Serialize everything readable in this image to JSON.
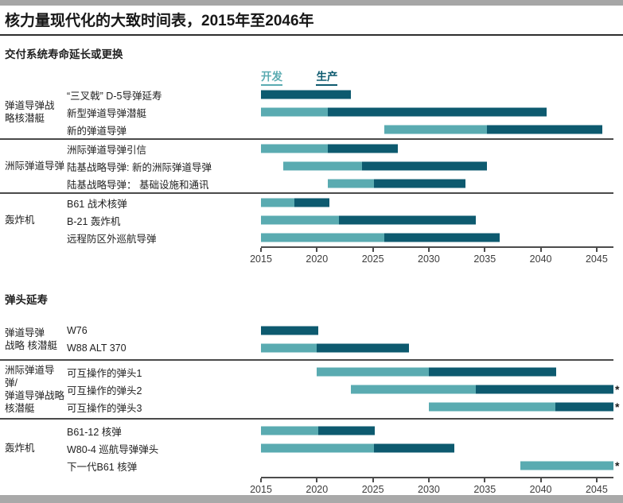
{
  "page": {
    "title": "核力量现代化的大致时间表，2015年至2046年"
  },
  "legend": {
    "dev_label": "开发",
    "prod_label": "生产"
  },
  "colors": {
    "dev": "#5aabb1",
    "prod": "#0d5a6f",
    "divider": "#4a4a4a",
    "axis": "#4c4c4c",
    "top_bar": "#a6a6a6",
    "bottom_bar": "#a9a9a9"
  },
  "axis": {
    "start": 2015,
    "end": 2046.5,
    "ticks": [
      2015,
      2020,
      2025,
      2030,
      2035,
      2040,
      2045
    ]
  },
  "chart_data": [
    {
      "type": "gantt",
      "title": "交付系统寿命延长或更换",
      "legend_entries": [
        "开发",
        "生产"
      ],
      "x_range": [
        2015,
        2046.5
      ],
      "groups": [
        {
          "label": "弹道导弹战\n略核潜艇",
          "rows": [
            {
              "label": "“三叉戟” D-5导弹延寿",
              "dev": null,
              "prod": [
                2015,
                2023
              ]
            },
            {
              "label": "新型弹道导弹潜艇",
              "dev": [
                2015,
                2021
              ],
              "prod": [
                2021,
                2040.5
              ]
            },
            {
              "label": "新的弹道导弹",
              "dev": [
                2026,
                2035.2
              ],
              "prod": [
                2035.2,
                2045.5
              ]
            }
          ]
        },
        {
          "label": "洲际弹道导弹",
          "rows": [
            {
              "label": "洲际弹道导弹引信",
              "dev": [
                2015,
                2021
              ],
              "prod": [
                2021,
                2027.2
              ]
            },
            {
              "label": "陆基战略导弹: 新的洲际弹道导弹",
              "dev": [
                2017,
                2024
              ],
              "prod": [
                2024,
                2035.2
              ]
            },
            {
              "label": "陆基战略导弹： 基础设施和通讯",
              "dev": [
                2021,
                2025.1
              ],
              "prod": [
                2025.1,
                2033.3
              ]
            }
          ]
        },
        {
          "label": "轰炸机",
          "rows": [
            {
              "label": "B61 战术核弹",
              "dev": [
                2015,
                2018
              ],
              "prod": [
                2018,
                2021.1
              ]
            },
            {
              "label": "B-21 轰炸机",
              "dev": [
                2015,
                2022
              ],
              "prod": [
                2022,
                2034.2
              ]
            },
            {
              "label": "远程防区外巡航导弹",
              "dev": [
                2015,
                2026
              ],
              "prod": [
                2026,
                2036.3
              ]
            }
          ]
        }
      ]
    },
    {
      "type": "gantt",
      "title": "弹头延寿",
      "x_range": [
        2015,
        2046.5
      ],
      "groups": [
        {
          "label": "弹道导弹\n战略 核潜艇",
          "rows": [
            {
              "label": "W76",
              "dev": null,
              "prod": [
                2015,
                2020.1
              ]
            },
            {
              "label": "W88 ALT 370",
              "dev": [
                2015,
                2020
              ],
              "prod": [
                2020,
                2028.2
              ]
            }
          ]
        },
        {
          "label": "洲际弹道导弹/\n弹道导弹战略\n核潜艇",
          "rows": [
            {
              "label": "可互操作的弹头1",
              "dev": [
                2020,
                2030
              ],
              "prod": [
                2030,
                2041.4
              ]
            },
            {
              "label": "可互操作的弹头2",
              "dev": [
                2023,
                2034.2
              ],
              "prod": [
                2034.2,
                2046.5
              ],
              "continues": true
            },
            {
              "label": "可互操作的弹头3",
              "dev": [
                2030,
                2041.3
              ],
              "prod": [
                2041.3,
                2046.5
              ],
              "continues": true
            }
          ]
        },
        {
          "label": "轰炸机",
          "rows": [
            {
              "label": "B61-12 核弹",
              "dev": [
                2015,
                2020.1
              ],
              "prod": [
                2020.1,
                2025.2
              ]
            },
            {
              "label": "W80-4 巡航导弹弹头",
              "dev": [
                2015,
                2025.1
              ],
              "prod": [
                2025.1,
                2032.3
              ]
            },
            {
              "label": "下一代B61 核弹",
              "dev": [
                2038.2,
                2046.5
              ],
              "prod": null,
              "continues": true
            }
          ]
        }
      ]
    }
  ]
}
